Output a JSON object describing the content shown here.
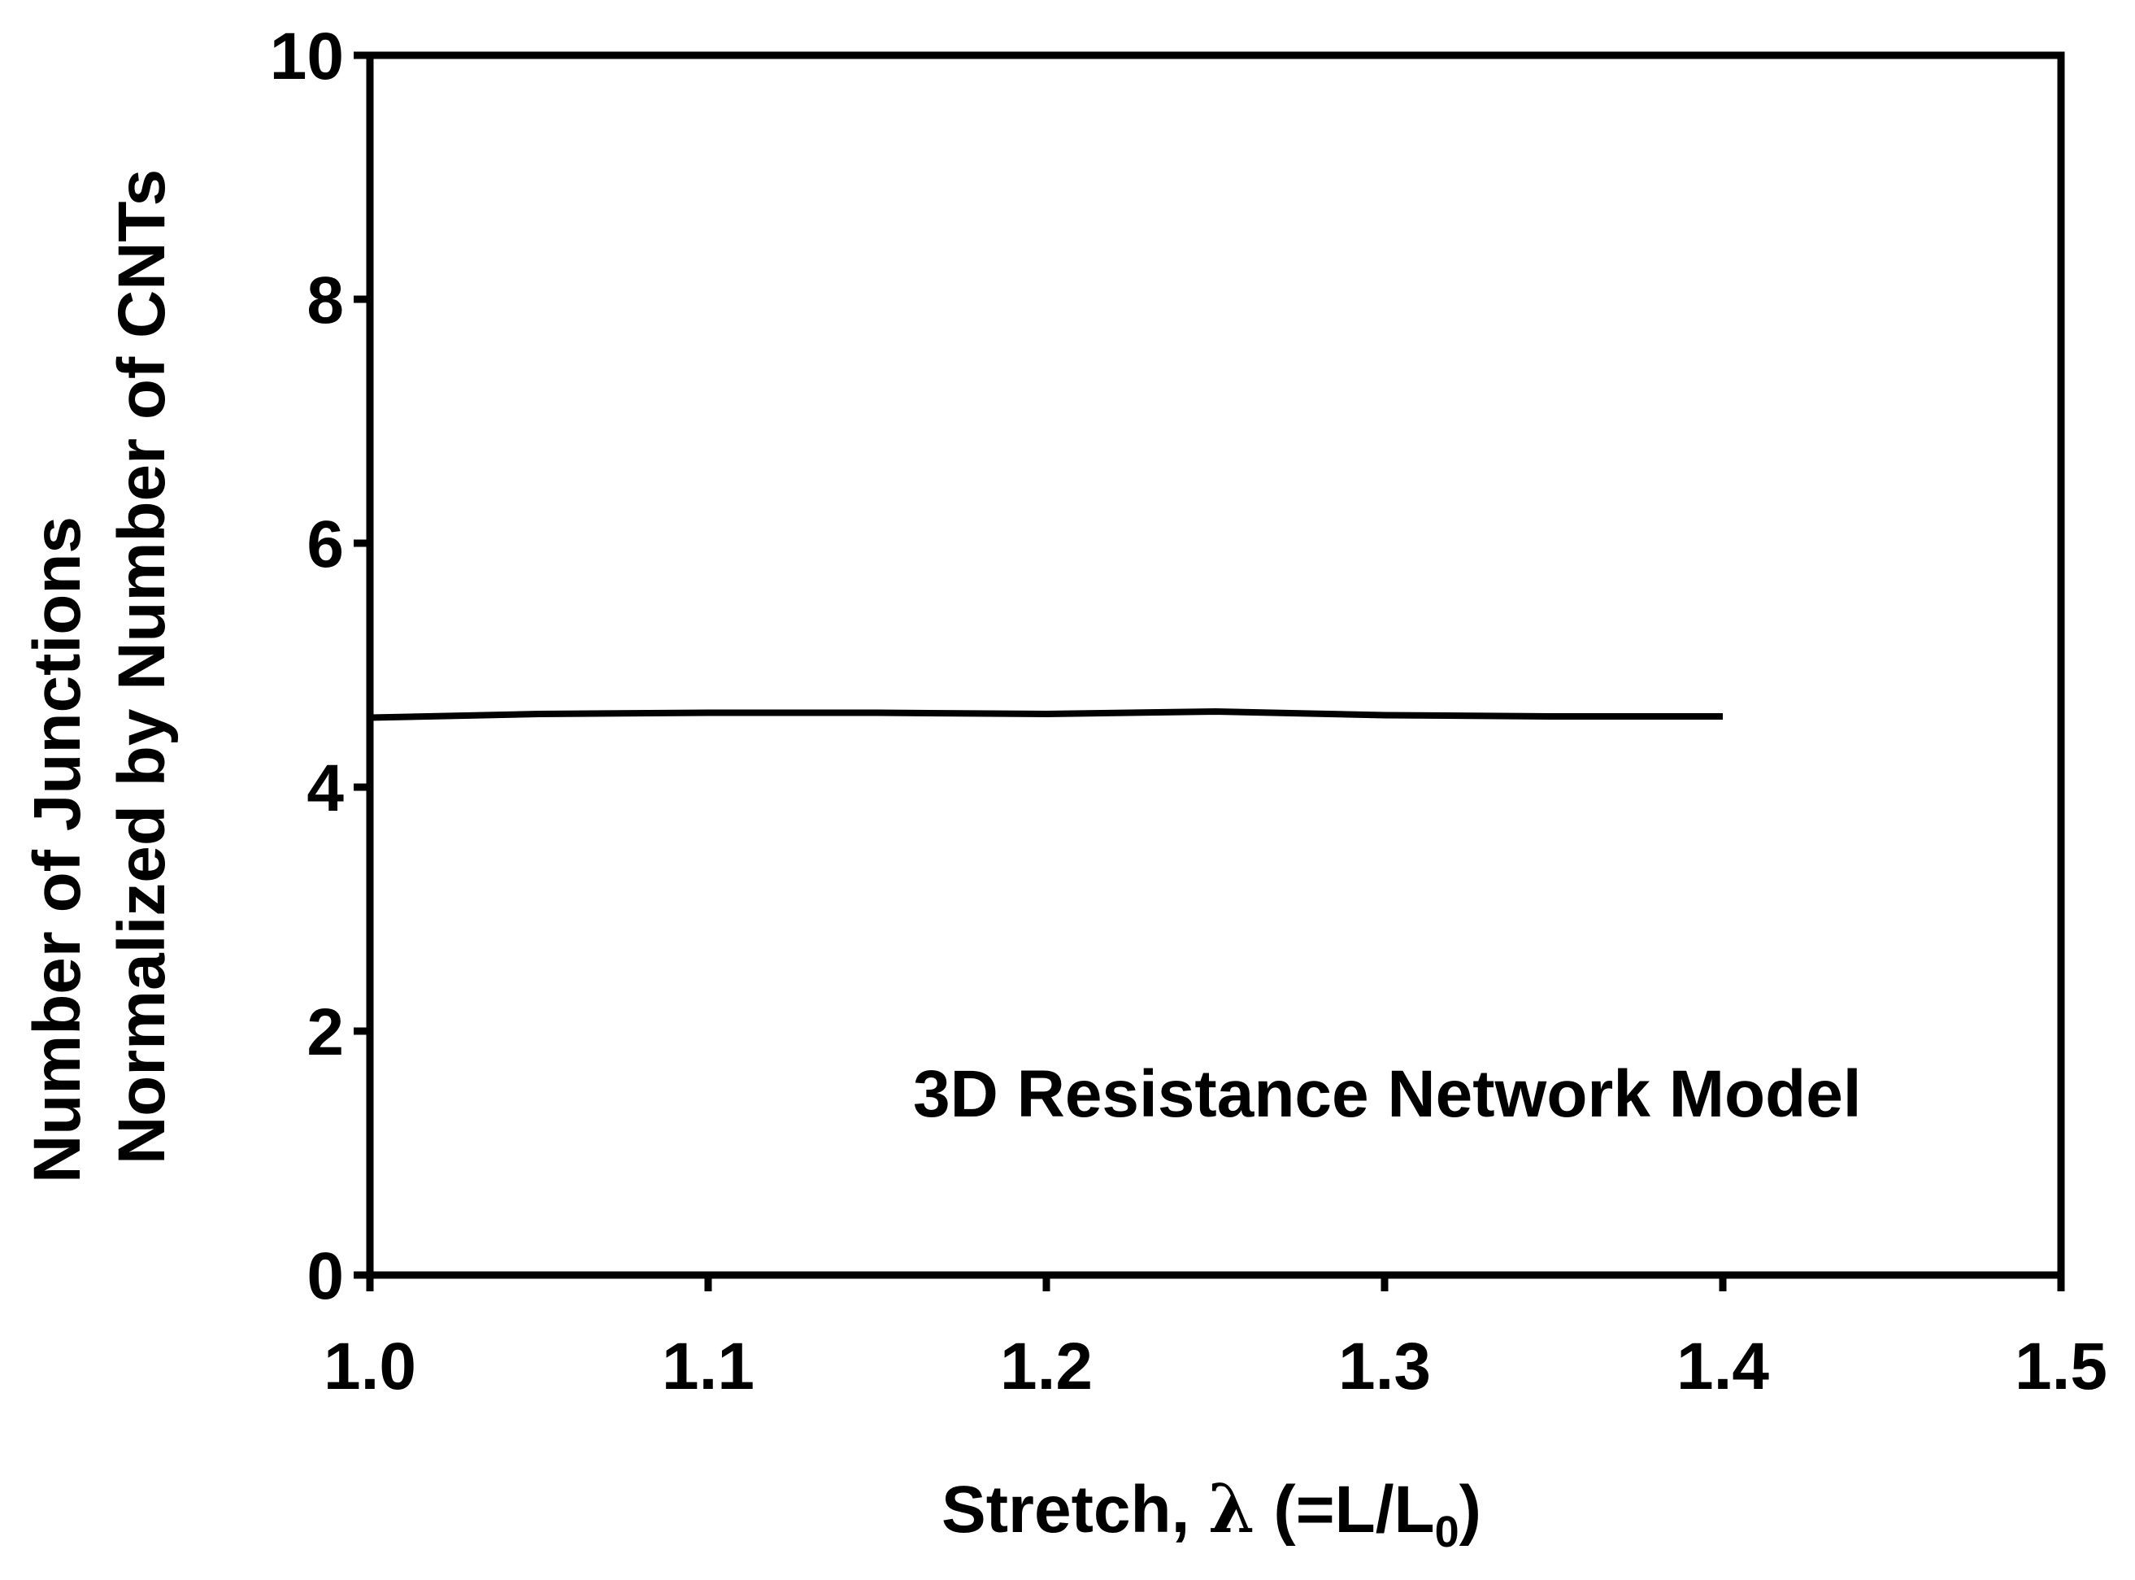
{
  "chart_data": {
    "type": "line",
    "xlabel": {
      "prefix": "Stretch, ",
      "symbol": "λ",
      "mid": " (=L/L",
      "sub": "0",
      "suffix": ")"
    },
    "ylabel_lines": [
      "Number of Junctions",
      "Normalized by Number of CNTs"
    ],
    "xlim": [
      1.0,
      1.5
    ],
    "ylim": [
      0,
      10
    ],
    "xticks": [
      "1.0",
      "1.1",
      "1.2",
      "1.3",
      "1.4",
      "1.5"
    ],
    "yticks": [
      "0",
      "2",
      "4",
      "6",
      "8",
      "10"
    ],
    "grid": false,
    "annotation": "3D Resistance Network Model",
    "series": [
      {
        "color": "#000000",
        "x": [
          1.0,
          1.05,
          1.1,
          1.15,
          1.2,
          1.25,
          1.3,
          1.35,
          1.4
        ],
        "y": [
          4.57,
          4.6,
          4.61,
          4.61,
          4.6,
          4.62,
          4.59,
          4.58,
          4.58
        ]
      }
    ]
  }
}
